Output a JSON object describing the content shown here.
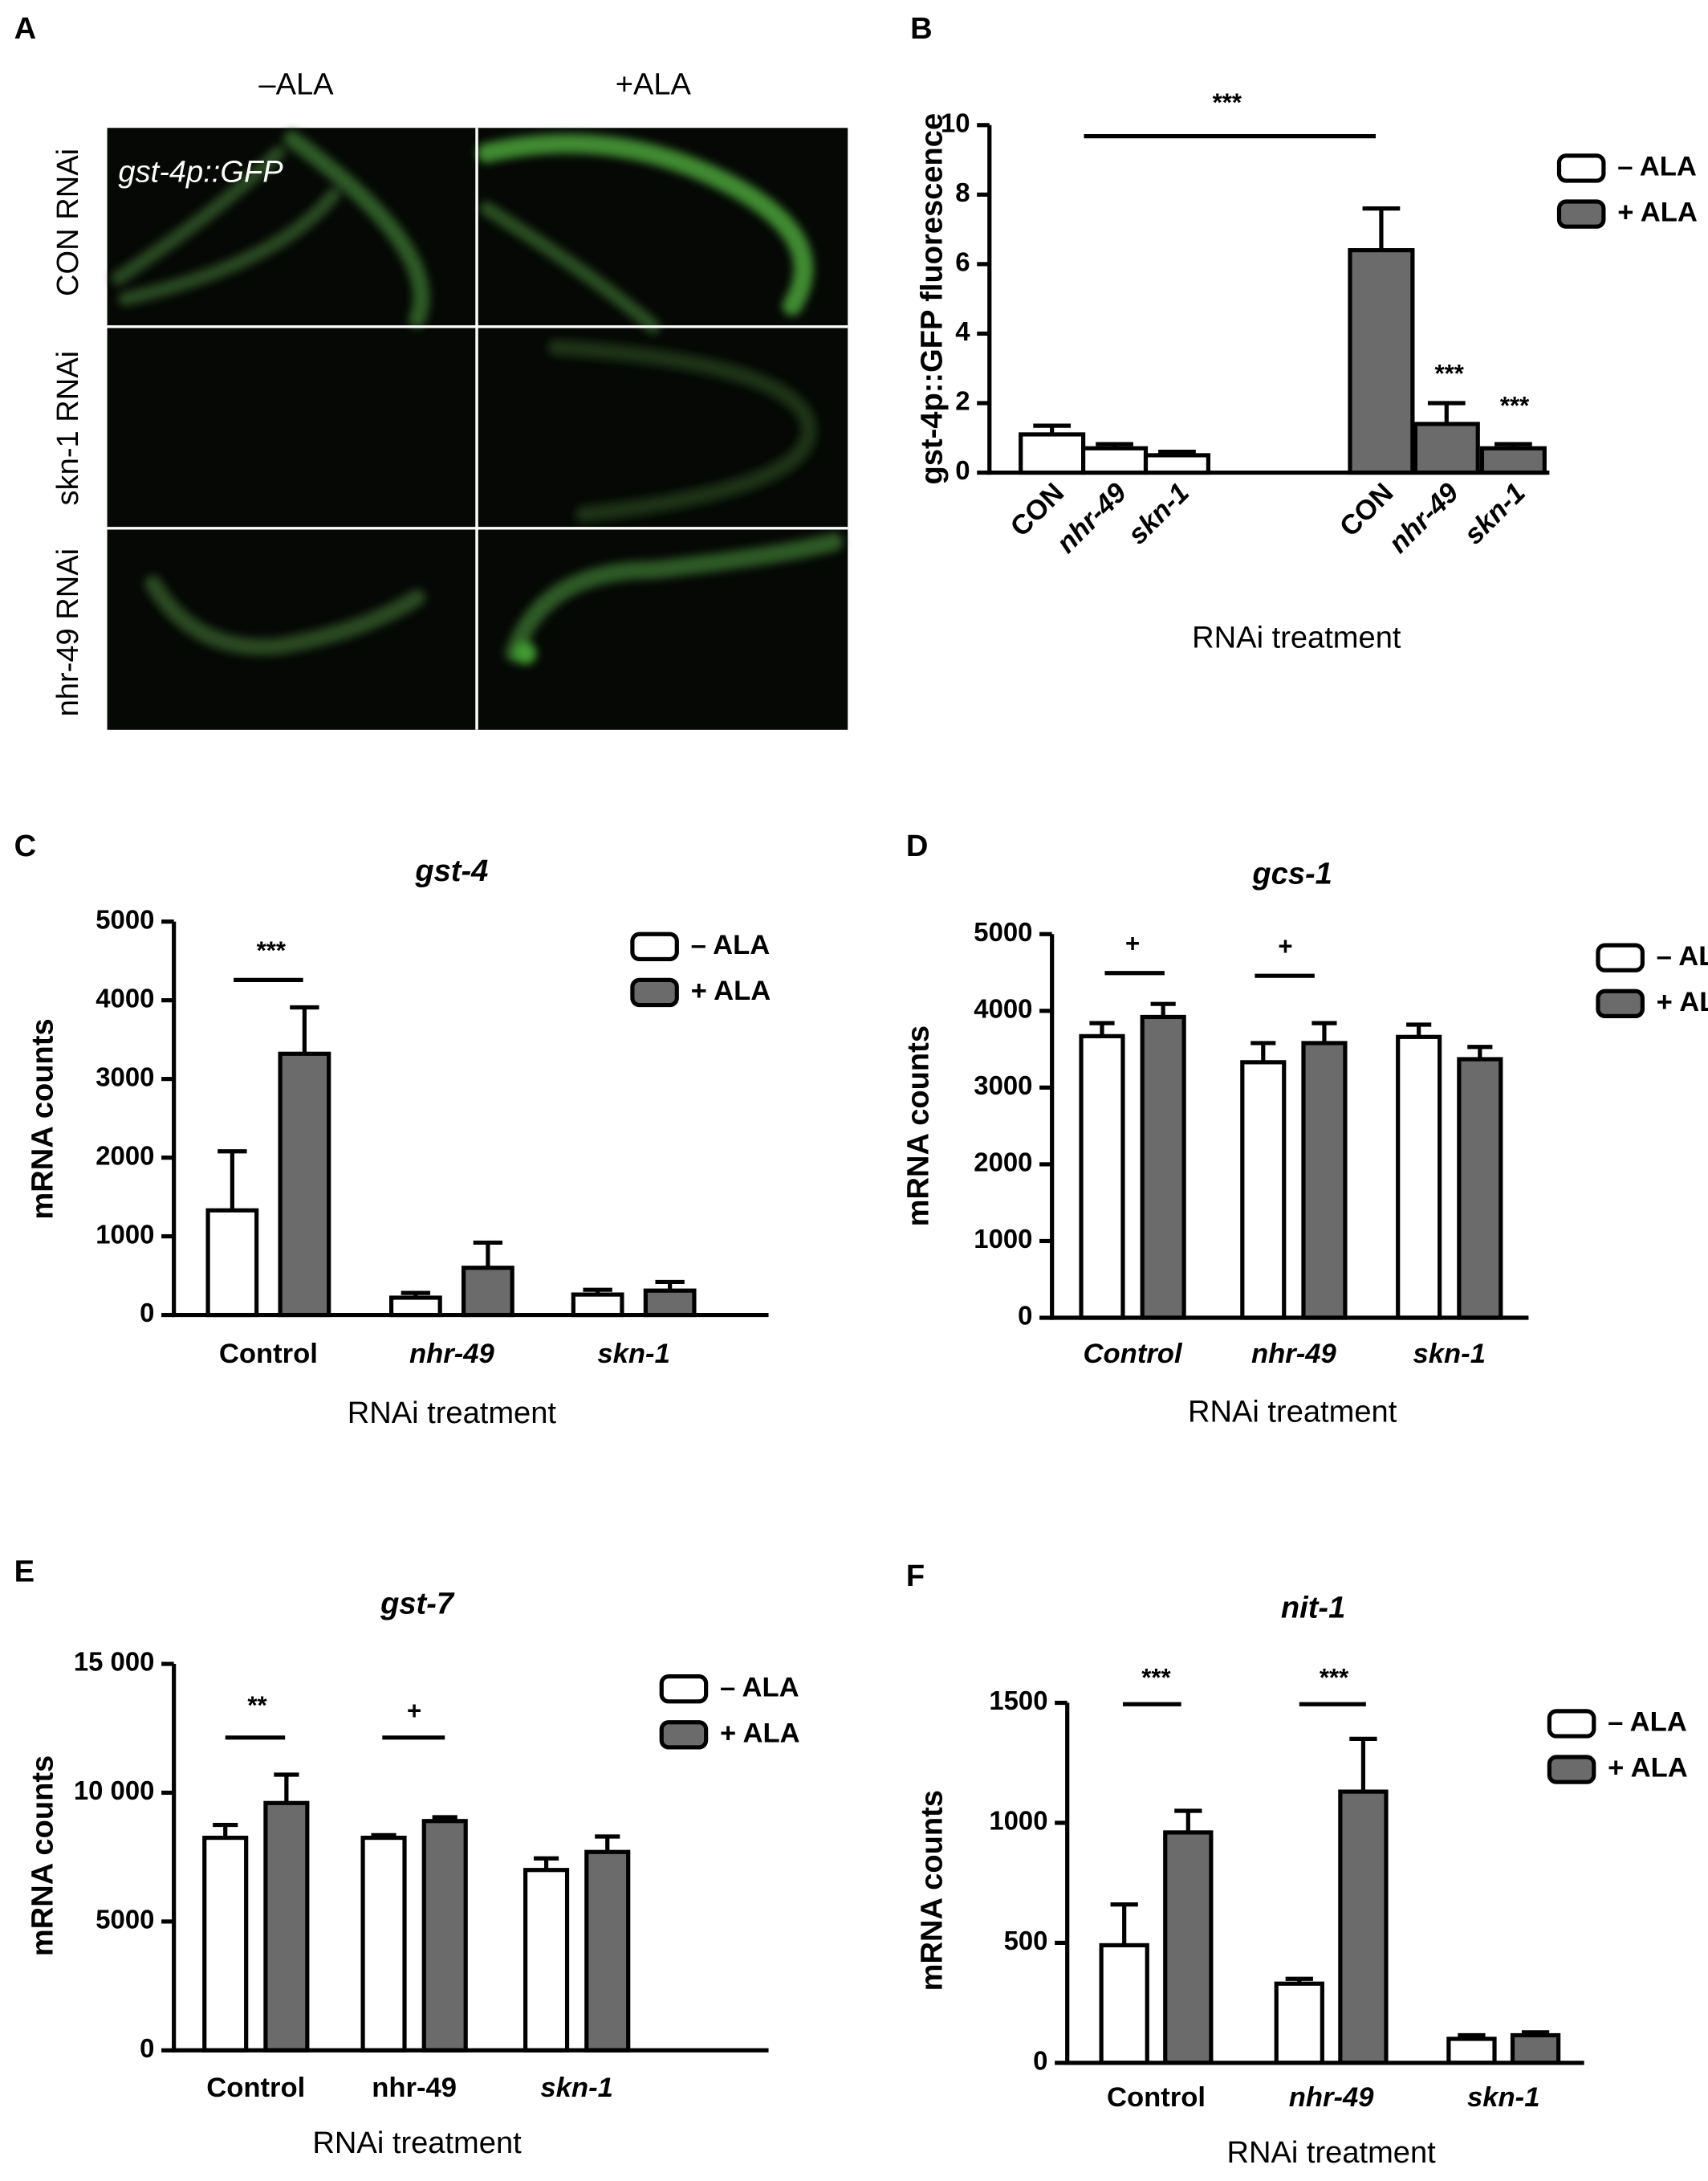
{
  "panel_a": {
    "letter": "A",
    "col_minus": "–ALA",
    "col_plus": "+ALA",
    "row_con": "CON RNAi",
    "row_skn": "skn-1 RNAi",
    "row_nhr": "nhr-49 RNAi",
    "reporter": "gst-4p::GFP"
  },
  "chart_data": [
    {
      "panel": "B",
      "type": "bar",
      "ylabel": "gst-4p::GFP fluorescence",
      "xlabel": "RNAi treatment",
      "categories": [
        "CON",
        "nhr-49",
        "skn-1",
        "CON",
        "nhr-49",
        "skn-1"
      ],
      "series": [
        {
          "name": "– ALA",
          "color": "#ffffff",
          "values": [
            1.1,
            0.7,
            0.5,
            null,
            null,
            null
          ],
          "errors": [
            0.25,
            0.12,
            0.1,
            null,
            null,
            null
          ]
        },
        {
          "name": "+ ALA",
          "color": "#6b6b6b",
          "values": [
            null,
            null,
            null,
            6.4,
            1.4,
            0.7
          ],
          "errors": [
            null,
            null,
            null,
            1.2,
            0.6,
            0.12
          ]
        }
      ],
      "ylim": [
        0,
        10
      ],
      "yticks": [
        0,
        2,
        4,
        6,
        8,
        10
      ],
      "annotations": [
        "***",
        "***",
        "***"
      ]
    },
    {
      "panel": "C",
      "type": "bar",
      "title": "gst-4",
      "ylabel": "mRNA counts",
      "xlabel": "RNAi treatment",
      "categories": [
        "Control",
        "nhr-49",
        "skn-1"
      ],
      "series": [
        {
          "name": "– ALA",
          "color": "#ffffff",
          "values": [
            1330,
            220,
            260
          ],
          "errors": [
            750,
            60,
            60
          ]
        },
        {
          "name": "+ ALA",
          "color": "#6b6b6b",
          "values": [
            3320,
            600,
            310
          ],
          "errors": [
            590,
            320,
            110
          ]
        }
      ],
      "ylim": [
        0,
        5000
      ],
      "yticks": [
        0,
        1000,
        2000,
        3000,
        4000,
        5000
      ],
      "annotations": [
        "***"
      ]
    },
    {
      "panel": "D",
      "type": "bar",
      "title": "gcs-1",
      "ylabel": "mRNA counts",
      "xlabel": "RNAi treatment",
      "categories": [
        "Control",
        "nhr-49",
        "skn-1"
      ],
      "series": [
        {
          "name": "– ALA",
          "color": "#ffffff",
          "values": [
            3670,
            3330,
            3660
          ],
          "errors": [
            170,
            250,
            160
          ]
        },
        {
          "name": "+ ALA",
          "color": "#6b6b6b",
          "values": [
            3920,
            3580,
            3370
          ],
          "errors": [
            170,
            260,
            160
          ]
        }
      ],
      "ylim": [
        0,
        5000
      ],
      "yticks": [
        0,
        1000,
        2000,
        3000,
        4000,
        5000
      ],
      "annotations": [
        "+",
        "+"
      ]
    },
    {
      "panel": "E",
      "type": "bar",
      "title": "gst-7",
      "ylabel": "mRNA counts",
      "xlabel": "RNAi treatment",
      "categories": [
        "Control",
        "nhr-49",
        "skn-1"
      ],
      "series": [
        {
          "name": "– ALA",
          "color": "#ffffff",
          "values": [
            8250,
            8250,
            7000
          ],
          "errors": [
            500,
            100,
            450
          ]
        },
        {
          "name": "+ ALA",
          "color": "#6b6b6b",
          "values": [
            9600,
            8900,
            7700
          ],
          "errors": [
            1100,
            150,
            600
          ]
        }
      ],
      "ylim": [
        0,
        15000
      ],
      "yticks": [
        0,
        5000,
        {
          "value": 10000,
          "label": "10 000"
        },
        {
          "value": 15000,
          "label": "15 000"
        }
      ],
      "annotations": [
        "**",
        "+"
      ]
    },
    {
      "panel": "F",
      "type": "bar",
      "title": "nit-1",
      "ylabel": "mRNA counts",
      "xlabel": "RNAi treatment",
      "categories": [
        "Control",
        "nhr-49",
        "skn-1"
      ],
      "series": [
        {
          "name": "– ALA",
          "color": "#ffffff",
          "values": [
            490,
            330,
            100
          ],
          "errors": [
            170,
            20,
            15
          ]
        },
        {
          "name": "+ ALA",
          "color": "#6b6b6b",
          "values": [
            960,
            1130,
            115
          ],
          "errors": [
            90,
            220,
            12
          ]
        }
      ],
      "ylim": [
        0,
        1500
      ],
      "yticks": [
        0,
        500,
        1000,
        1500
      ],
      "annotations": [
        "***",
        "***"
      ]
    }
  ]
}
